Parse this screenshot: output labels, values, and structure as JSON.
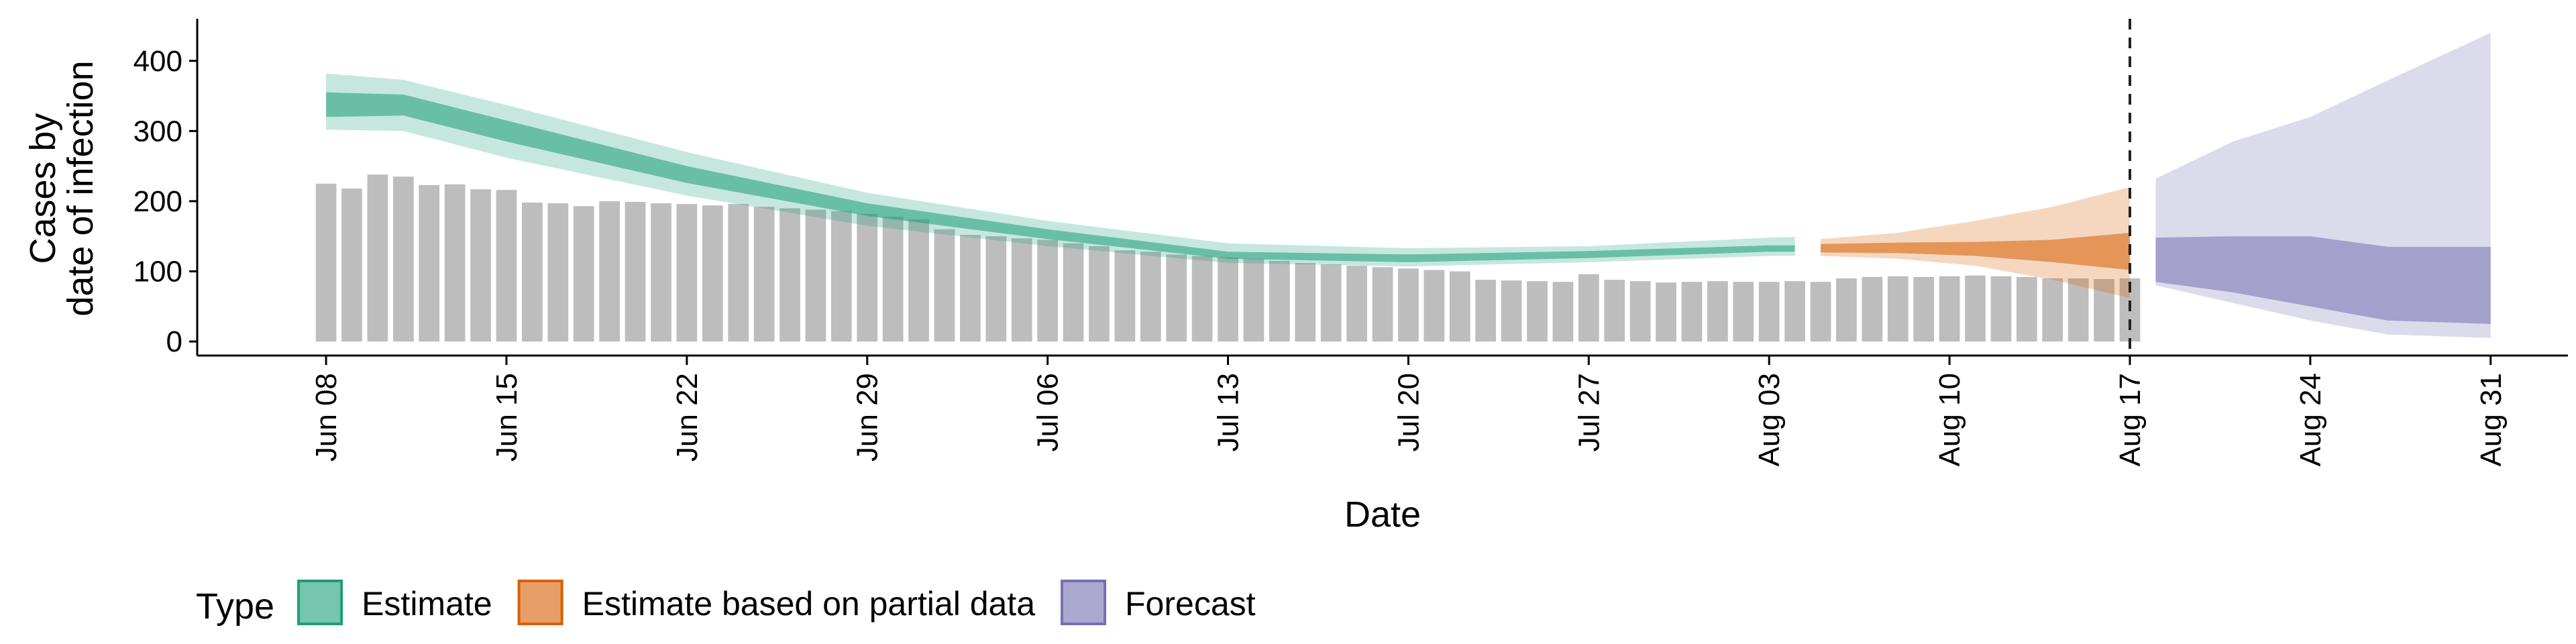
{
  "chart_data": {
    "type": "bar",
    "xlabel": "Date",
    "ylabel": [
      "Cases by",
      "date of infection"
    ],
    "x_range": [
      "2020-06-03",
      "2020-09-03"
    ],
    "ylim": [
      -20,
      460
    ],
    "y_ticks": [
      0,
      100,
      200,
      300,
      400
    ],
    "x_ticks": [
      {
        "date": "2020-06-08",
        "label": "Jun 08"
      },
      {
        "date": "2020-06-15",
        "label": "Jun 15"
      },
      {
        "date": "2020-06-22",
        "label": "Jun 22"
      },
      {
        "date": "2020-06-29",
        "label": "Jun 29"
      },
      {
        "date": "2020-07-06",
        "label": "Jul 06"
      },
      {
        "date": "2020-07-13",
        "label": "Jul 13"
      },
      {
        "date": "2020-07-20",
        "label": "Jul 20"
      },
      {
        "date": "2020-07-27",
        "label": "Jul 27"
      },
      {
        "date": "2020-08-03",
        "label": "Aug 03"
      },
      {
        "date": "2020-08-10",
        "label": "Aug 10"
      },
      {
        "date": "2020-08-17",
        "label": "Aug 17"
      },
      {
        "date": "2020-08-24",
        "label": "Aug 24"
      },
      {
        "date": "2020-08-31",
        "label": "Aug 31"
      }
    ],
    "reference_line": {
      "date": "2020-08-17",
      "style": "dashed"
    },
    "grid": false,
    "legend": {
      "title": "Type",
      "placement": "bottom-left",
      "entries": [
        {
          "label": "Estimate",
          "color": "#1b9e77"
        },
        {
          "label": "Estimate based on partial data",
          "color": "#d95f02"
        },
        {
          "label": "Forecast",
          "color": "#7570b3"
        }
      ]
    },
    "bar_color": "#bdbdbd",
    "bars": {
      "start_date": "2020-06-08",
      "values": [
        225,
        218,
        238,
        235,
        223,
        224,
        217,
        216,
        198,
        197,
        193,
        200,
        199,
        197,
        196,
        194,
        196,
        192,
        190,
        188,
        186,
        182,
        178,
        174,
        160,
        152,
        150,
        147,
        145,
        140,
        136,
        130,
        128,
        124,
        122,
        120,
        118,
        115,
        112,
        110,
        108,
        106,
        104,
        102,
        100,
        88,
        87,
        86,
        85,
        96,
        88,
        86,
        84,
        85,
        86,
        85,
        85,
        86,
        85,
        90,
        92,
        93,
        92,
        93,
        94,
        93,
        92,
        90,
        90,
        89,
        90
      ]
    },
    "series": [
      {
        "name": "Estimate",
        "color": "#1b9e77",
        "dates": [
          "2020-06-08",
          "2020-06-11",
          "2020-06-15",
          "2020-06-22",
          "2020-06-29",
          "2020-07-06",
          "2020-07-13",
          "2020-07-20",
          "2020-07-27",
          "2020-08-03",
          "2020-08-04"
        ],
        "median": [
          338,
          337,
          300,
          238,
          188,
          152,
          122,
          118,
          123,
          132,
          132
        ],
        "lower90": [
          302,
          300,
          262,
          208,
          165,
          136,
          112,
          107,
          113,
          122,
          122
        ],
        "upper90": [
          382,
          373,
          337,
          270,
          212,
          172,
          140,
          133,
          136,
          148,
          149
        ],
        "lower50": [
          320,
          322,
          285,
          226,
          179,
          146,
          118,
          113,
          119,
          128,
          128
        ],
        "upper50": [
          355,
          352,
          315,
          250,
          197,
          160,
          128,
          124,
          129,
          137,
          137
        ]
      },
      {
        "name": "Estimate based on partial data",
        "color": "#d95f02",
        "dates": [
          "2020-08-05",
          "2020-08-08",
          "2020-08-11",
          "2020-08-14",
          "2020-08-17"
        ],
        "median": [
          133,
          133,
          131,
          128,
          127
        ],
        "lower90": [
          122,
          118,
          108,
          88,
          62
        ],
        "upper90": [
          146,
          155,
          172,
          192,
          220
        ],
        "lower50": [
          127,
          126,
          122,
          113,
          102
        ],
        "upper50": [
          139,
          141,
          142,
          145,
          155
        ]
      },
      {
        "name": "Forecast",
        "color": "#7570b3",
        "dates": [
          "2020-08-18",
          "2020-08-21",
          "2020-08-24",
          "2020-08-27",
          "2020-08-31"
        ],
        "median": [
          115,
          114,
          113,
          100,
          80
        ],
        "lower90": [
          80,
          55,
          30,
          10,
          5
        ],
        "upper90": [
          232,
          285,
          320,
          372,
          440
        ],
        "lower50": [
          85,
          70,
          50,
          30,
          25
        ],
        "upper50": [
          148,
          150,
          150,
          135,
          135
        ]
      }
    ]
  }
}
